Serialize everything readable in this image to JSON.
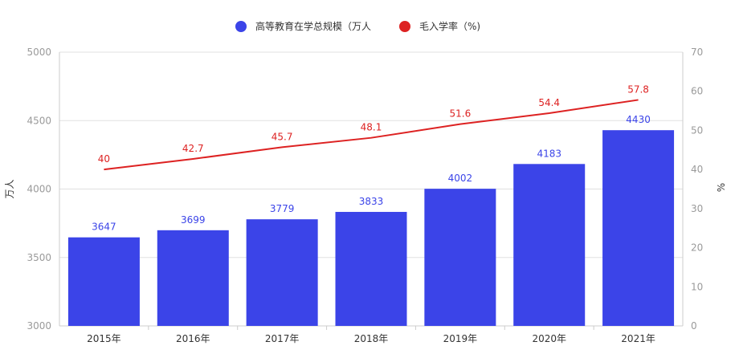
{
  "chart_data": {
    "type": "bar",
    "categories": [
      "2015年",
      "2016年",
      "2017年",
      "2018年",
      "2019年",
      "2020年",
      "2021年"
    ],
    "series": [
      {
        "name": "高等教育在学总规模（万人",
        "type": "bar",
        "axis": "left",
        "color": "#3b44e8",
        "values": [
          3647,
          3699,
          3779,
          3833,
          4002,
          4183,
          4430
        ]
      },
      {
        "name": "毛入学率（%)",
        "type": "line",
        "axis": "right",
        "color": "#dd2222",
        "values": [
          40,
          42.7,
          45.7,
          48.1,
          51.6,
          54.4,
          57.8
        ]
      }
    ],
    "y_left": {
      "label": "万人",
      "ylim": [
        3000,
        5000
      ],
      "ticks": [
        3000,
        3500,
        4000,
        4500,
        5000
      ]
    },
    "y_right": {
      "label": "%",
      "ylim": [
        0,
        70
      ],
      "ticks": [
        0,
        10,
        20,
        30,
        40,
        50,
        60,
        70
      ]
    },
    "legend": "top-center",
    "grid": true
  }
}
